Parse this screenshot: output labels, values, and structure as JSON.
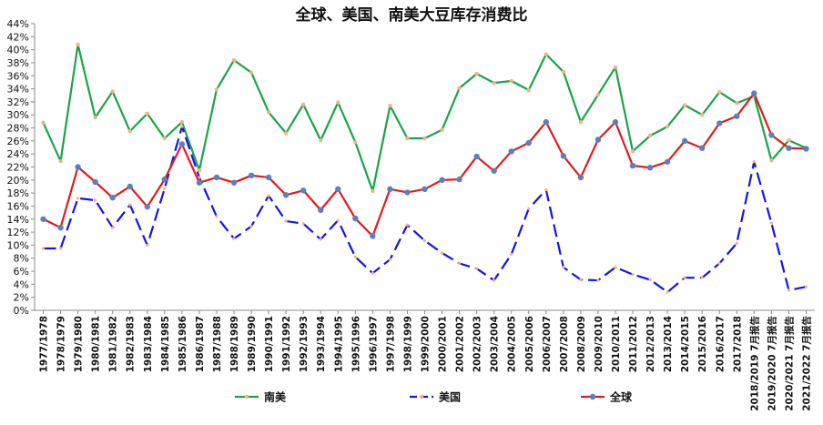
{
  "chart_data": {
    "type": "line",
    "title": "全球、美国、南美大豆库存消费比",
    "xlabel": "",
    "ylabel": "",
    "ylim": [
      0,
      44
    ],
    "y_step": 2,
    "y_tick_format": "percent",
    "grid": false,
    "legend_position": "bottom",
    "categories": [
      "1977/1978",
      "1978/1979",
      "1979/1980",
      "1980/1981",
      "1981/1982",
      "1982/1983",
      "1983/1984",
      "1984/1985",
      "1985/1986",
      "1986/1987",
      "1987/1988",
      "1988/1989",
      "1989/1990",
      "1990/1991",
      "1991/1992",
      "1992/1993",
      "1993/1994",
      "1994/1995",
      "1995/1996",
      "1996/1997",
      "1997/1998",
      "1998/1999",
      "1999/2000",
      "2000/2001",
      "2001/2002",
      "2002/2003",
      "2003/2004",
      "2004/2005",
      "2005/2006",
      "2006/2007",
      "2007/2008",
      "2008/2009",
      "2009/2010",
      "2010/2011",
      "2011/2012",
      "2012/2013",
      "2013/2014",
      "2014/2015",
      "2015/2016",
      "2016/2017",
      "2017/2018",
      "2018/2019 7月报告",
      "2019/2020 7月报告",
      "2020/2021 7月报告",
      "2021/2022 7月报告"
    ],
    "series": [
      {
        "name": "南美",
        "color": "#1aa34a",
        "marker_color": "#f4b183",
        "dash": false,
        "values": [
          28.8,
          22.9,
          40.8,
          29.6,
          33.6,
          27.5,
          30.2,
          26.4,
          28.9,
          21.5,
          33.9,
          38.4,
          36.5,
          30.4,
          27.2,
          31.6,
          26.1,
          31.9,
          25.8,
          18.3,
          31.4,
          26.4,
          26.4,
          27.7,
          34.1,
          36.3,
          34.9,
          35.2,
          33.8,
          39.3,
          36.6,
          28.9,
          33.1,
          37.3,
          24.4,
          26.8,
          28.2,
          31.5,
          30.0,
          33.5,
          31.8,
          32.9,
          23.0,
          26.1,
          24.9
        ]
      },
      {
        "name": "美国",
        "color": "#1414e6",
        "marker_color": "#f4b183",
        "dash": true,
        "values": [
          9.5,
          9.5,
          17.2,
          16.9,
          12.7,
          16.2,
          10.0,
          18.7,
          28.2,
          20.4,
          14.4,
          11.0,
          12.9,
          17.6,
          13.7,
          13.3,
          10.9,
          13.8,
          8.2,
          5.7,
          7.8,
          13.1,
          10.7,
          8.8,
          7.2,
          6.4,
          4.6,
          8.6,
          15.6,
          18.5,
          6.6,
          4.7,
          4.6,
          6.6,
          5.5,
          4.7,
          2.8,
          5.0,
          5.0,
          7.2,
          10.3,
          22.8,
          13.4,
          3.1,
          3.6
        ]
      },
      {
        "name": "全球",
        "color": "#e31a1c",
        "marker_color": "#5b7fbf",
        "dash": false,
        "values": [
          14.0,
          12.7,
          22.0,
          19.7,
          17.3,
          19.0,
          15.9,
          20.1,
          25.5,
          19.6,
          20.4,
          19.6,
          20.7,
          20.4,
          17.7,
          18.4,
          15.4,
          18.6,
          14.1,
          11.4,
          18.6,
          18.1,
          18.6,
          20.0,
          20.1,
          23.6,
          21.4,
          24.4,
          25.7,
          28.9,
          23.7,
          20.4,
          26.2,
          28.9,
          22.2,
          21.9,
          22.8,
          26.0,
          24.9,
          28.7,
          29.8,
          33.3,
          26.9,
          24.9,
          24.8
        ]
      }
    ]
  }
}
